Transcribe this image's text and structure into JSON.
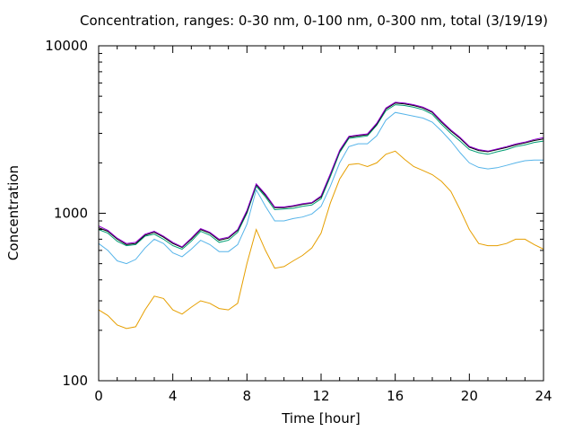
{
  "chart_data": {
    "type": "line",
    "title": "Concentration, ranges: 0-30 nm, 0-100 nm, 0-300 nm, total (3/19/19)",
    "xlabel": "Time [hour]",
    "ylabel": "Concentration",
    "xlim": [
      0,
      24
    ],
    "ylim": [
      100,
      10000
    ],
    "yscale": "log",
    "xticks": [
      "0",
      "4",
      "8",
      "12",
      "16",
      "20",
      "24"
    ],
    "yticks": [
      "100",
      "1000",
      "10000"
    ],
    "grid": false,
    "series": [
      {
        "color": "#e69f00",
        "x": [
          0,
          0.5,
          1,
          1.5,
          2,
          2.5,
          3,
          3.5,
          4,
          4.5,
          5,
          5.5,
          6,
          6.5,
          7,
          7.5,
          8,
          8.5,
          9,
          9.5,
          10,
          10.5,
          11,
          11.5,
          12,
          12.5,
          13,
          13.5,
          14,
          14.5,
          15,
          15.5,
          16,
          16.5,
          17,
          17.5,
          18,
          18.5,
          19,
          19.5,
          20,
          20.5,
          21,
          21.5,
          22,
          22.5,
          23,
          23.5,
          24
        ],
        "y": [
          265,
          245,
          215,
          205,
          210,
          265,
          320,
          310,
          265,
          250,
          275,
          300,
          290,
          270,
          265,
          290,
          500,
          800,
          600,
          470,
          480,
          520,
          560,
          620,
          760,
          1150,
          1600,
          1950,
          1980,
          1900,
          2000,
          2250,
          2350,
          2100,
          1900,
          1800,
          1700,
          1550,
          1350,
          1050,
          800,
          660,
          640,
          640,
          660,
          700,
          700,
          650,
          610
        ]
      },
      {
        "color": "#56b4e9",
        "x": [
          0,
          0.5,
          1,
          1.5,
          2,
          2.5,
          3,
          3.5,
          4,
          4.5,
          5,
          5.5,
          6,
          6.5,
          7,
          7.5,
          8,
          8.5,
          9,
          9.5,
          10,
          10.5,
          11,
          11.5,
          12,
          12.5,
          13,
          13.5,
          14,
          14.5,
          15,
          15.5,
          16,
          16.5,
          17,
          17.5,
          18,
          18.5,
          19,
          19.5,
          20,
          20.5,
          21,
          21.5,
          22,
          22.5,
          23,
          23.5,
          24
        ],
        "y": [
          660,
          600,
          520,
          500,
          530,
          620,
          700,
          660,
          580,
          550,
          610,
          690,
          650,
          590,
          590,
          650,
          860,
          1380,
          1100,
          900,
          900,
          930,
          950,
          990,
          1100,
          1450,
          2000,
          2500,
          2600,
          2600,
          2900,
          3600,
          4000,
          3900,
          3800,
          3700,
          3500,
          3100,
          2700,
          2300,
          2000,
          1880,
          1840,
          1870,
          1930,
          2000,
          2060,
          2080,
          2080
        ]
      },
      {
        "color": "#009e73",
        "x": [
          0,
          0.5,
          1,
          1.5,
          2,
          2.5,
          3,
          3.5,
          4,
          4.5,
          5,
          5.5,
          6,
          6.5,
          7,
          7.5,
          8,
          8.5,
          9,
          9.5,
          10,
          10.5,
          11,
          11.5,
          12,
          12.5,
          13,
          13.5,
          14,
          14.5,
          15,
          15.5,
          16,
          16.5,
          17,
          17.5,
          18,
          18.5,
          19,
          19.5,
          20,
          20.5,
          21,
          21.5,
          22,
          22.5,
          23,
          23.5,
          24
        ],
        "y": [
          800,
          760,
          680,
          640,
          650,
          730,
          750,
          700,
          640,
          610,
          680,
          780,
          740,
          670,
          690,
          770,
          1000,
          1450,
          1250,
          1050,
          1060,
          1070,
          1100,
          1120,
          1220,
          1650,
          2300,
          2800,
          2850,
          2900,
          3350,
          4100,
          4450,
          4400,
          4300,
          4150,
          3900,
          3400,
          3000,
          2700,
          2400,
          2300,
          2250,
          2330,
          2400,
          2500,
          2560,
          2650,
          2700
        ]
      },
      {
        "color": "#000000",
        "x": [
          0,
          0.5,
          1,
          1.5,
          2,
          2.5,
          3,
          3.5,
          4,
          4.5,
          5,
          5.5,
          6,
          6.5,
          7,
          7.5,
          8,
          8.5,
          9,
          9.5,
          10,
          10.5,
          11,
          11.5,
          12,
          12.5,
          13,
          13.5,
          14,
          14.5,
          15,
          15.5,
          16,
          16.5,
          17,
          17.5,
          18,
          18.5,
          19,
          19.5,
          20,
          20.5,
          21,
          21.5,
          22,
          22.5,
          23,
          23.5,
          24
        ],
        "y": [
          820,
          780,
          700,
          650,
          660,
          740,
          770,
          720,
          660,
          625,
          700,
          800,
          760,
          690,
          710,
          790,
          1020,
          1480,
          1280,
          1080,
          1080,
          1100,
          1130,
          1150,
          1250,
          1700,
          2350,
          2850,
          2900,
          2950,
          3400,
          4200,
          4550,
          4500,
          4400,
          4250,
          4000,
          3500,
          3100,
          2800,
          2480,
          2370,
          2330,
          2400,
          2470,
          2560,
          2630,
          2720,
          2780
        ]
      },
      {
        "color": "#9400d3",
        "x": [
          0,
          0.5,
          1,
          1.5,
          2,
          2.5,
          3,
          3.5,
          4,
          4.5,
          5,
          5.5,
          6,
          6.5,
          7,
          7.5,
          8,
          8.5,
          9,
          9.5,
          10,
          10.5,
          11,
          11.5,
          12,
          12.5,
          13,
          13.5,
          14,
          14.5,
          15,
          15.5,
          16,
          16.5,
          17,
          17.5,
          18,
          18.5,
          19,
          19.5,
          20,
          20.5,
          21,
          21.5,
          22,
          22.5,
          23,
          23.5,
          24
        ],
        "y": [
          840,
          790,
          710,
          660,
          670,
          750,
          780,
          730,
          670,
          630,
          710,
          810,
          770,
          700,
          720,
          800,
          1040,
          1500,
          1300,
          1090,
          1090,
          1110,
          1140,
          1160,
          1270,
          1720,
          2380,
          2880,
          2930,
          2980,
          3450,
          4250,
          4600,
          4550,
          4450,
          4300,
          4050,
          3550,
          3150,
          2840,
          2510,
          2400,
          2350,
          2420,
          2500,
          2590,
          2660,
          2760,
          2830
        ]
      }
    ]
  }
}
